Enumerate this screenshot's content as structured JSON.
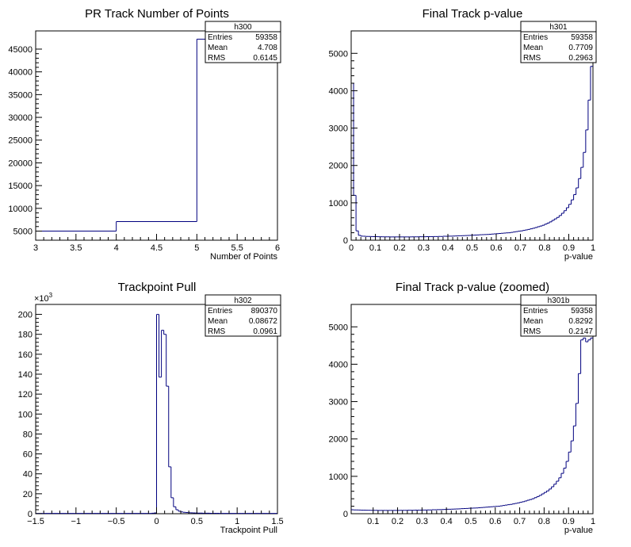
{
  "colors": {
    "histogram": "#00007f",
    "axis": "#000000",
    "background": "#ffffff"
  },
  "chart_data": [
    {
      "type": "bar",
      "id": "h300",
      "title": "PR Track Number of Points",
      "xlabel": "Number of Points",
      "ylabel": "",
      "xlim": [
        3,
        6
      ],
      "ylim": [
        3000,
        49000
      ],
      "xticks": [
        3,
        3.5,
        4,
        4.5,
        5,
        5.5,
        6
      ],
      "xtick_labels": [
        "3",
        "3.5",
        "4",
        "4.5",
        "5",
        "5.5",
        "6"
      ],
      "yticks": [
        5000,
        10000,
        15000,
        20000,
        25000,
        30000,
        35000,
        40000,
        45000
      ],
      "ytick_labels": [
        "5000",
        "10000",
        "15000",
        "20000",
        "25000",
        "30000",
        "35000",
        "40000",
        "45000"
      ],
      "y_multiplier": "",
      "bin_edges": [
        3,
        4,
        5,
        6
      ],
      "values": [
        5000,
        7100,
        47200
      ],
      "stats": {
        "name": "h300",
        "rows": [
          [
            "Entries",
            "59358"
          ],
          [
            "Mean",
            "4.708"
          ],
          [
            "RMS",
            "0.6145"
          ]
        ]
      }
    },
    {
      "type": "bar",
      "id": "h301",
      "title": "Final Track p-value",
      "xlabel": "p-value",
      "ylabel": "",
      "xlim": [
        0,
        1
      ],
      "ylim": [
        0,
        5600
      ],
      "xticks": [
        0,
        0.1,
        0.2,
        0.3,
        0.4,
        0.5,
        0.6,
        0.7,
        0.8,
        0.9,
        1
      ],
      "xtick_labels": [
        "0",
        "0.1",
        "0.2",
        "0.3",
        "0.4",
        "0.5",
        "0.6",
        "0.7",
        "0.8",
        "0.9",
        "1"
      ],
      "yticks": [
        0,
        1000,
        2000,
        3000,
        4000,
        5000
      ],
      "ytick_labels": [
        "0",
        "1000",
        "2000",
        "3000",
        "4000",
        "5000"
      ],
      "y_multiplier": "",
      "bin_start": 0,
      "bin_width": 0.01,
      "values": [
        4200,
        1200,
        250,
        130,
        110,
        105,
        100,
        100,
        98,
        95,
        95,
        92,
        92,
        90,
        90,
        90,
        88,
        88,
        88,
        88,
        88,
        88,
        88,
        88,
        88,
        90,
        90,
        90,
        92,
        92,
        92,
        95,
        95,
        95,
        98,
        98,
        100,
        100,
        105,
        105,
        108,
        110,
        112,
        115,
        118,
        120,
        122,
        125,
        128,
        130,
        135,
        138,
        140,
        145,
        148,
        150,
        155,
        160,
        165,
        170,
        175,
        180,
        185,
        190,
        195,
        200,
        210,
        220,
        230,
        240,
        250,
        262,
        275,
        290,
        305,
        320,
        340,
        360,
        380,
        400,
        430,
        460,
        490,
        530,
        570,
        610,
        660,
        720,
        790,
        870,
        960,
        1080,
        1220,
        1400,
        1650,
        1950,
        2350,
        2950,
        3750,
        4650
      ],
      "stats": {
        "name": "h301",
        "rows": [
          [
            "Entries",
            "59358"
          ],
          [
            "Mean",
            "0.7709"
          ],
          [
            "RMS",
            "0.2963"
          ]
        ]
      }
    },
    {
      "type": "bar",
      "id": "h302",
      "title": "Trackpoint Pull",
      "xlabel": "Trackpoint Pull",
      "ylabel": "",
      "xlim": [
        -1.5,
        1.5
      ],
      "ylim": [
        0,
        210
      ],
      "xticks": [
        -1.5,
        -1,
        -0.5,
        0,
        0.5,
        1,
        1.5
      ],
      "xtick_labels": [
        "−1.5",
        "−1",
        "−0.5",
        "0",
        "0.5",
        "1",
        "1.5"
      ],
      "yticks": [
        0,
        20,
        40,
        60,
        80,
        100,
        120,
        140,
        160,
        180,
        200
      ],
      "ytick_labels": [
        "0",
        "20",
        "40",
        "60",
        "80",
        "100",
        "120",
        "140",
        "160",
        "180",
        "200"
      ],
      "y_multiplier": "×10",
      "y_multiplier_exp": "3",
      "bin_start": -1.5,
      "bin_width": 0.03,
      "values": [
        0.3,
        0.3,
        0.3,
        0.3,
        0.3,
        0.3,
        0.3,
        0.3,
        0.3,
        0.3,
        0.3,
        0.3,
        0.3,
        0.3,
        0.3,
        0.3,
        0.3,
        0.3,
        0.3,
        0.3,
        0.3,
        0.3,
        0.3,
        0.3,
        0.3,
        0.3,
        0.3,
        0.3,
        0.3,
        0.3,
        0.3,
        0.3,
        0.3,
        0.3,
        0.3,
        0.3,
        0.3,
        0.3,
        0.3,
        0.3,
        0.3,
        0.3,
        0.3,
        0.3,
        0.3,
        0.3,
        0.3,
        0.3,
        0.5,
        0.8,
        200,
        137,
        184,
        180,
        128,
        47,
        16,
        7,
        4,
        2.5,
        1.8,
        1.4,
        1.2,
        1.0,
        0.9,
        0.8,
        0.7,
        0.6,
        0.6,
        0.5,
        0.5,
        0.5,
        0.4,
        0.4,
        0.4,
        0.4,
        0.3,
        0.3,
        0.3,
        0.3,
        0.3,
        0.3,
        0.3,
        0.3,
        0.3,
        0.3,
        0.3,
        0.3,
        0.3,
        0.3,
        0.3,
        0.3,
        0.3,
        0.3,
        0.3,
        0.3,
        0.3,
        0.3,
        0.3,
        0.3
      ],
      "stats": {
        "name": "h302",
        "rows": [
          [
            "Entries",
            "890370"
          ],
          [
            "Mean",
            "0.08672"
          ],
          [
            "RMS",
            "0.0961"
          ]
        ]
      }
    },
    {
      "type": "bar",
      "id": "h301b",
      "title": "Final Track p-value (zoomed)",
      "xlabel": "p-value",
      "ylabel": "",
      "xlim": [
        0.01,
        1
      ],
      "ylim": [
        0,
        5600
      ],
      "xticks": [
        0.1,
        0.2,
        0.3,
        0.4,
        0.5,
        0.6,
        0.7,
        0.8,
        0.9,
        1
      ],
      "xtick_labels": [
        "0.1",
        "0.2",
        "0.3",
        "0.4",
        "0.5",
        "0.6",
        "0.7",
        "0.8",
        "0.9",
        "1"
      ],
      "yticks": [
        0,
        1000,
        2000,
        3000,
        4000,
        5000
      ],
      "ytick_labels": [
        "0",
        "1000",
        "2000",
        "3000",
        "4000",
        "5000"
      ],
      "y_multiplier": "",
      "bin_start": 0.01,
      "bin_width": 0.01,
      "values": [
        105,
        100,
        100,
        98,
        95,
        95,
        92,
        92,
        90,
        90,
        90,
        88,
        88,
        88,
        88,
        88,
        88,
        88,
        88,
        88,
        90,
        90,
        90,
        92,
        92,
        92,
        95,
        95,
        95,
        98,
        98,
        100,
        100,
        105,
        105,
        108,
        110,
        112,
        115,
        118,
        120,
        122,
        125,
        128,
        130,
        135,
        138,
        140,
        145,
        148,
        150,
        155,
        160,
        165,
        170,
        175,
        180,
        185,
        190,
        195,
        200,
        210,
        220,
        230,
        240,
        250,
        262,
        275,
        290,
        305,
        320,
        340,
        360,
        380,
        400,
        430,
        460,
        490,
        530,
        570,
        610,
        660,
        720,
        790,
        870,
        960,
        1080,
        1220,
        1400,
        1650,
        1950,
        2350,
        2950,
        3750,
        4650,
        4700,
        4600,
        4650,
        4700
      ],
      "stats": {
        "name": "h301b",
        "rows": [
          [
            "Entries",
            "59358"
          ],
          [
            "Mean",
            "0.8292"
          ],
          [
            "RMS",
            "0.2147"
          ]
        ]
      }
    }
  ]
}
